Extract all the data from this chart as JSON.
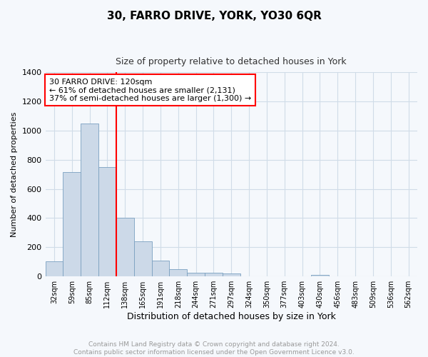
{
  "title": "30, FARRO DRIVE, YORK, YO30 6QR",
  "subtitle": "Size of property relative to detached houses in York",
  "xlabel": "Distribution of detached houses by size in York",
  "ylabel": "Number of detached properties",
  "bar_labels": [
    "32sqm",
    "59sqm",
    "85sqm",
    "112sqm",
    "138sqm",
    "165sqm",
    "191sqm",
    "218sqm",
    "244sqm",
    "271sqm",
    "297sqm",
    "324sqm",
    "350sqm",
    "377sqm",
    "403sqm",
    "430sqm",
    "456sqm",
    "483sqm",
    "509sqm",
    "536sqm",
    "562sqm"
  ],
  "bar_values": [
    105,
    715,
    1050,
    750,
    400,
    243,
    110,
    48,
    25,
    25,
    20,
    0,
    0,
    0,
    0,
    10,
    0,
    0,
    0,
    0,
    0
  ],
  "bar_color": "#ccd9e8",
  "bar_edge_color": "#7aa0c0",
  "vline_x": 3.5,
  "vline_color": "red",
  "annotation_text": "30 FARRO DRIVE: 120sqm\n← 61% of detached houses are smaller (2,131)\n37% of semi-detached houses are larger (1,300) →",
  "annotation_box_color": "white",
  "annotation_box_edgecolor": "red",
  "ylim": [
    0,
    1400
  ],
  "yticks": [
    0,
    200,
    400,
    600,
    800,
    1000,
    1200,
    1400
  ],
  "footer_text": "Contains HM Land Registry data © Crown copyright and database right 2024.\nContains public sector information licensed under the Open Government Licence v3.0.",
  "footer_color": "#999999",
  "grid_color": "#d0dce8",
  "background_color": "#f5f8fc",
  "title_fontsize": 11,
  "subtitle_fontsize": 9,
  "annotation_fontsize": 8
}
